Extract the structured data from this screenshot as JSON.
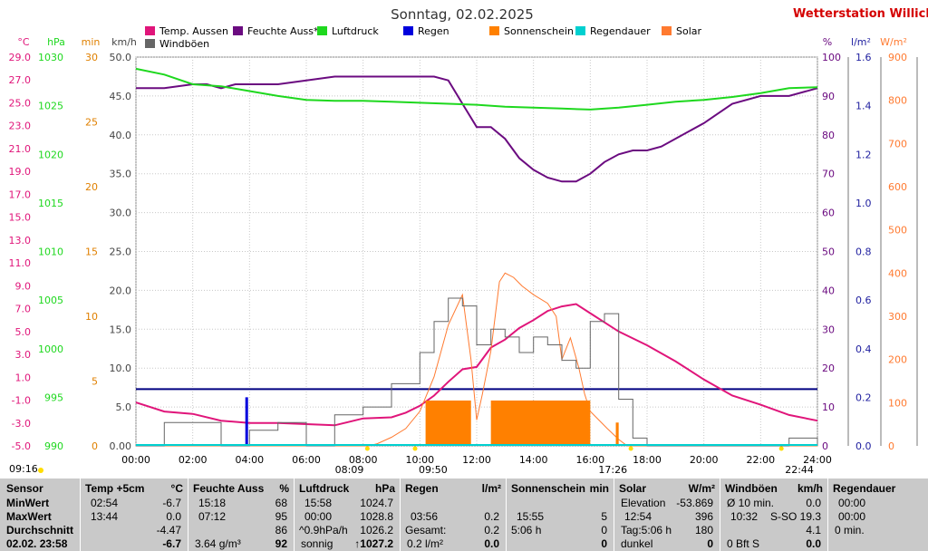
{
  "station": {
    "title": "Sonntag, 02.02.2025",
    "name": "Wetterstation Willich",
    "name_color": "#d40000"
  },
  "colors": {
    "temp": "#e0157a",
    "hum": "#6b0b80",
    "press": "#1ed81e",
    "rain": "#0000dd",
    "sun": "#ff8000",
    "raindur": "#00d0d0",
    "solar": "#ff7a30",
    "wind": "#666666",
    "navy": "#000080"
  },
  "legend": [
    {
      "label": "Temp. Aussen",
      "color": "#e0157a"
    },
    {
      "label": "Feuchte Auss*",
      "color": "#6b0b80"
    },
    {
      "label": "Luftdruck",
      "color": "#1ed81e"
    },
    {
      "label": "Regen",
      "color": "#0000dd"
    },
    {
      "label": "Sonnenschein",
      "color": "#ff8000"
    },
    {
      "label": "Regendauer",
      "color": "#00d0d0"
    },
    {
      "label": "Solar",
      "color": "#ff7a30"
    },
    {
      "label": "Windböen",
      "color": "#666666"
    }
  ],
  "chart_data": {
    "type": "line",
    "title": "Sonntag, 02.02.2025",
    "x_ticks": [
      "00:00",
      "02:00",
      "04:00",
      "06:00",
      "08:00",
      "10:00",
      "12:00",
      "14:00",
      "16:00",
      "18:00",
      "20:00",
      "22:00",
      "24:00"
    ],
    "axes": {
      "temp": {
        "unit": "°C",
        "ticks": [
          "29.0",
          "27.0",
          "25.0",
          "23.0",
          "21.0",
          "19.0",
          "17.0",
          "15.0",
          "13.0",
          "11.0",
          "9.0",
          "7.0",
          "5.0",
          "3.0",
          "1.0",
          "-1.0",
          "-3.0",
          "-5.0"
        ],
        "ylim": [
          -5,
          29
        ]
      },
      "press": {
        "unit": "hPa",
        "ticks": [
          "1030",
          "1025",
          "1020",
          "1015",
          "1010",
          "1005",
          "1000",
          "995",
          "990"
        ],
        "ylim": [
          990,
          1030
        ]
      },
      "min": {
        "unit": "min",
        "ticks": [
          "30",
          "25",
          "20",
          "15",
          "10",
          "5",
          "0"
        ],
        "ylim": [
          0,
          30
        ]
      },
      "wind": {
        "unit": "km/h",
        "ticks": [
          "50.0",
          "45.0",
          "40.0",
          "35.0",
          "30.0",
          "25.0",
          "20.0",
          "15.0",
          "10.0",
          "5.0",
          "0.00"
        ],
        "ylim": [
          0,
          50
        ]
      },
      "hum": {
        "unit": "%",
        "ticks": [
          "100",
          "90",
          "80",
          "70",
          "60",
          "50",
          "40",
          "30",
          "20",
          "10",
          "0"
        ],
        "ylim": [
          0,
          100
        ]
      },
      "rain": {
        "unit": "l/m²",
        "ticks": [
          "1.6",
          "1.4",
          "1.2",
          "1.0",
          "0.8",
          "0.6",
          "0.4",
          "0.2",
          "0.0"
        ],
        "ylim": [
          0,
          1.6
        ]
      },
      "solar": {
        "unit": "W/m²",
        "ticks": [
          "900",
          "800",
          "700",
          "600",
          "500",
          "400",
          "300",
          "200",
          "100",
          "0"
        ],
        "ylim": [
          0,
          900
        ]
      }
    },
    "series": [
      {
        "name": "Feuchte Auss*",
        "axis": "hum",
        "x": [
          0,
          1,
          2,
          2.5,
          3,
          3.5,
          4,
          5,
          6,
          7,
          8,
          9,
          9.5,
          10,
          10.5,
          11,
          11.5,
          12,
          12.5,
          13,
          13.5,
          14,
          14.5,
          15,
          15.5,
          16,
          16.5,
          17,
          17.5,
          18,
          18.5,
          19,
          20,
          21,
          22,
          23,
          24
        ],
        "y": [
          92,
          92,
          93,
          93,
          92,
          93,
          93,
          93,
          94,
          95,
          95,
          95,
          95,
          95,
          95,
          94,
          88,
          82,
          82,
          79,
          74,
          71,
          69,
          68,
          68,
          70,
          73,
          75,
          76,
          76,
          77,
          79,
          83,
          88,
          90,
          90,
          92
        ]
      },
      {
        "name": "Luftdruck",
        "axis": "press",
        "x": [
          0,
          1,
          2,
          3,
          4,
          5,
          6,
          7,
          8,
          9,
          10,
          11,
          12,
          13,
          14,
          15,
          16,
          17,
          18,
          19,
          20,
          21,
          22,
          23,
          24
        ],
        "y": [
          1028.8,
          1028.2,
          1027.2,
          1027.0,
          1026.5,
          1026.0,
          1025.6,
          1025.5,
          1025.5,
          1025.4,
          1025.3,
          1025.2,
          1025.1,
          1024.9,
          1024.8,
          1024.7,
          1024.6,
          1024.8,
          1025.1,
          1025.4,
          1025.6,
          1025.9,
          1026.3,
          1026.8,
          1026.9
        ]
      },
      {
        "name": "Temp. Aussen",
        "axis": "temp",
        "x": [
          0,
          1,
          2,
          3,
          4,
          5,
          6,
          7,
          8,
          9,
          9.5,
          10,
          10.5,
          11,
          11.5,
          12,
          12.5,
          13,
          13.5,
          14,
          14.5,
          15,
          15.5,
          16,
          16.5,
          17,
          18,
          19,
          20,
          21,
          22,
          23,
          24
        ],
        "y": [
          -1.2,
          -2.0,
          -2.2,
          -2.8,
          -3.0,
          -3.0,
          -3.1,
          -3.2,
          -2.6,
          -2.5,
          -2.1,
          -1.5,
          -0.6,
          0.6,
          1.7,
          1.9,
          3.6,
          4.3,
          5.3,
          6.0,
          6.8,
          7.2,
          7.4,
          6.6,
          5.8,
          5.0,
          3.8,
          2.4,
          0.8,
          -0.6,
          -1.4,
          -2.3,
          -2.8
        ]
      },
      {
        "name": "Solar",
        "axis": "solar",
        "x": [
          0,
          8.2,
          8.5,
          9,
          9.5,
          10,
          10.5,
          11,
          11.5,
          11.8,
          12,
          12.2,
          12.5,
          12.8,
          13,
          13.3,
          13.6,
          14,
          14.5,
          14.8,
          15,
          15.3,
          15.6,
          15.8,
          16,
          16.3,
          16.6,
          17,
          17.3,
          24
        ],
        "y": [
          0,
          0,
          5,
          20,
          40,
          80,
          160,
          280,
          350,
          200,
          60,
          120,
          220,
          380,
          400,
          390,
          370,
          350,
          330,
          300,
          200,
          250,
          180,
          120,
          80,
          60,
          40,
          15,
          0,
          0
        ]
      },
      {
        "name": "Windböen",
        "axis": "wind",
        "x": [
          0,
          1,
          2,
          3,
          4,
          5,
          6,
          7,
          8,
          9,
          10,
          10.5,
          11,
          11.5,
          12,
          12.5,
          13,
          13.5,
          14,
          14.5,
          15,
          15.5,
          16,
          16.5,
          17,
          17.5,
          18,
          19,
          20,
          21,
          22,
          23,
          24
        ],
        "y": [
          0,
          3,
          3,
          0,
          2,
          3,
          0,
          4,
          5,
          8,
          12,
          16,
          19,
          18,
          13,
          15,
          14,
          12,
          14,
          13,
          11,
          10,
          16,
          17,
          6,
          1,
          0,
          0,
          0,
          0,
          0,
          1,
          0
        ]
      },
      {
        "name": "Sonnenschein",
        "type": "bar",
        "axis": "min",
        "x": [
          10.2,
          11.8,
          12.5,
          16.0,
          16.9,
          17.0
        ],
        "y": [
          0,
          3.5,
          3.5,
          0,
          1.8,
          0
        ]
      },
      {
        "name": "Regen",
        "type": "bar",
        "axis": "rain",
        "x": [
          3.9
        ],
        "y": [
          0.2
        ]
      }
    ],
    "ref_line": {
      "axis": "wind",
      "y": 7.3
    },
    "markers": [
      {
        "label": "09:16",
        "x": null
      },
      {
        "label": "08:09",
        "x": 8.15
      },
      {
        "label": "09:50",
        "x": 9.83
      },
      {
        "label": "17:26",
        "x": 17.43
      },
      {
        "label": "22:44",
        "x": 22.73
      }
    ]
  },
  "table": {
    "sensor": {
      "header": "Sensor",
      "rows": [
        "MinWert",
        "MaxWert",
        "Durchschnitt",
        "02.02. 23:58"
      ]
    },
    "temp": {
      "header": "Temp +5cm",
      "unit": "°C",
      "rows": [
        [
          "02:54",
          "-6.7"
        ],
        [
          "13:44",
          "0.0"
        ],
        [
          "",
          "-4.47"
        ],
        [
          "",
          "-6.7"
        ]
      ]
    },
    "hum": {
      "header": "Feuchte Auss",
      "unit": "%",
      "rows": [
        [
          "15:18",
          "68"
        ],
        [
          "07:12",
          "95"
        ],
        [
          "",
          "86"
        ],
        [
          "3.64 g/m³",
          "92"
        ]
      ]
    },
    "press": {
      "header": "Luftdruck",
      "unit": "hPa",
      "rows": [
        [
          "15:58",
          "1024.7"
        ],
        [
          "00:00",
          "1028.8"
        ],
        [
          "^0.9hPa/h",
          "1026.2"
        ],
        [
          "sonnig",
          "↑1027.2"
        ]
      ]
    },
    "rain": {
      "header": "Regen",
      "unit": "l/m²",
      "rows": [
        [
          "",
          ""
        ],
        [
          "03:56",
          "0.2"
        ],
        [
          "Gesamt:",
          "0.2"
        ],
        [
          "0.2 l/m²",
          "0.0"
        ]
      ]
    },
    "sun": {
      "header": "Sonnenschein",
      "unit": "min",
      "rows": [
        [
          "",
          ""
        ],
        [
          "15:55",
          "5"
        ],
        [
          "5:06 h",
          "0"
        ],
        [
          "",
          "0"
        ]
      ]
    },
    "solar": {
      "header": "Solar",
      "unit": "W/m²",
      "rows": [
        [
          "Elevation",
          "-53.869"
        ],
        [
          "12:54",
          "396"
        ],
        [
          "Tag:5:06 h",
          "180"
        ],
        [
          "dunkel",
          "0"
        ]
      ]
    },
    "wind": {
      "header": "Windböen",
      "unit": "km/h",
      "rows": [
        [
          "Ø 10 min.",
          "0.0"
        ],
        [
          "10:32",
          "S-SO 19.3"
        ],
        [
          "",
          "4.1"
        ],
        [
          "0 Bft S",
          "0.0"
        ]
      ]
    },
    "raindur": {
      "header": "Regendauer",
      "unit": "",
      "rows": [
        [
          "00:00",
          ""
        ],
        [
          "00:00",
          ""
        ],
        [
          "0 min.",
          ""
        ],
        [
          "",
          ""
        ]
      ]
    }
  }
}
